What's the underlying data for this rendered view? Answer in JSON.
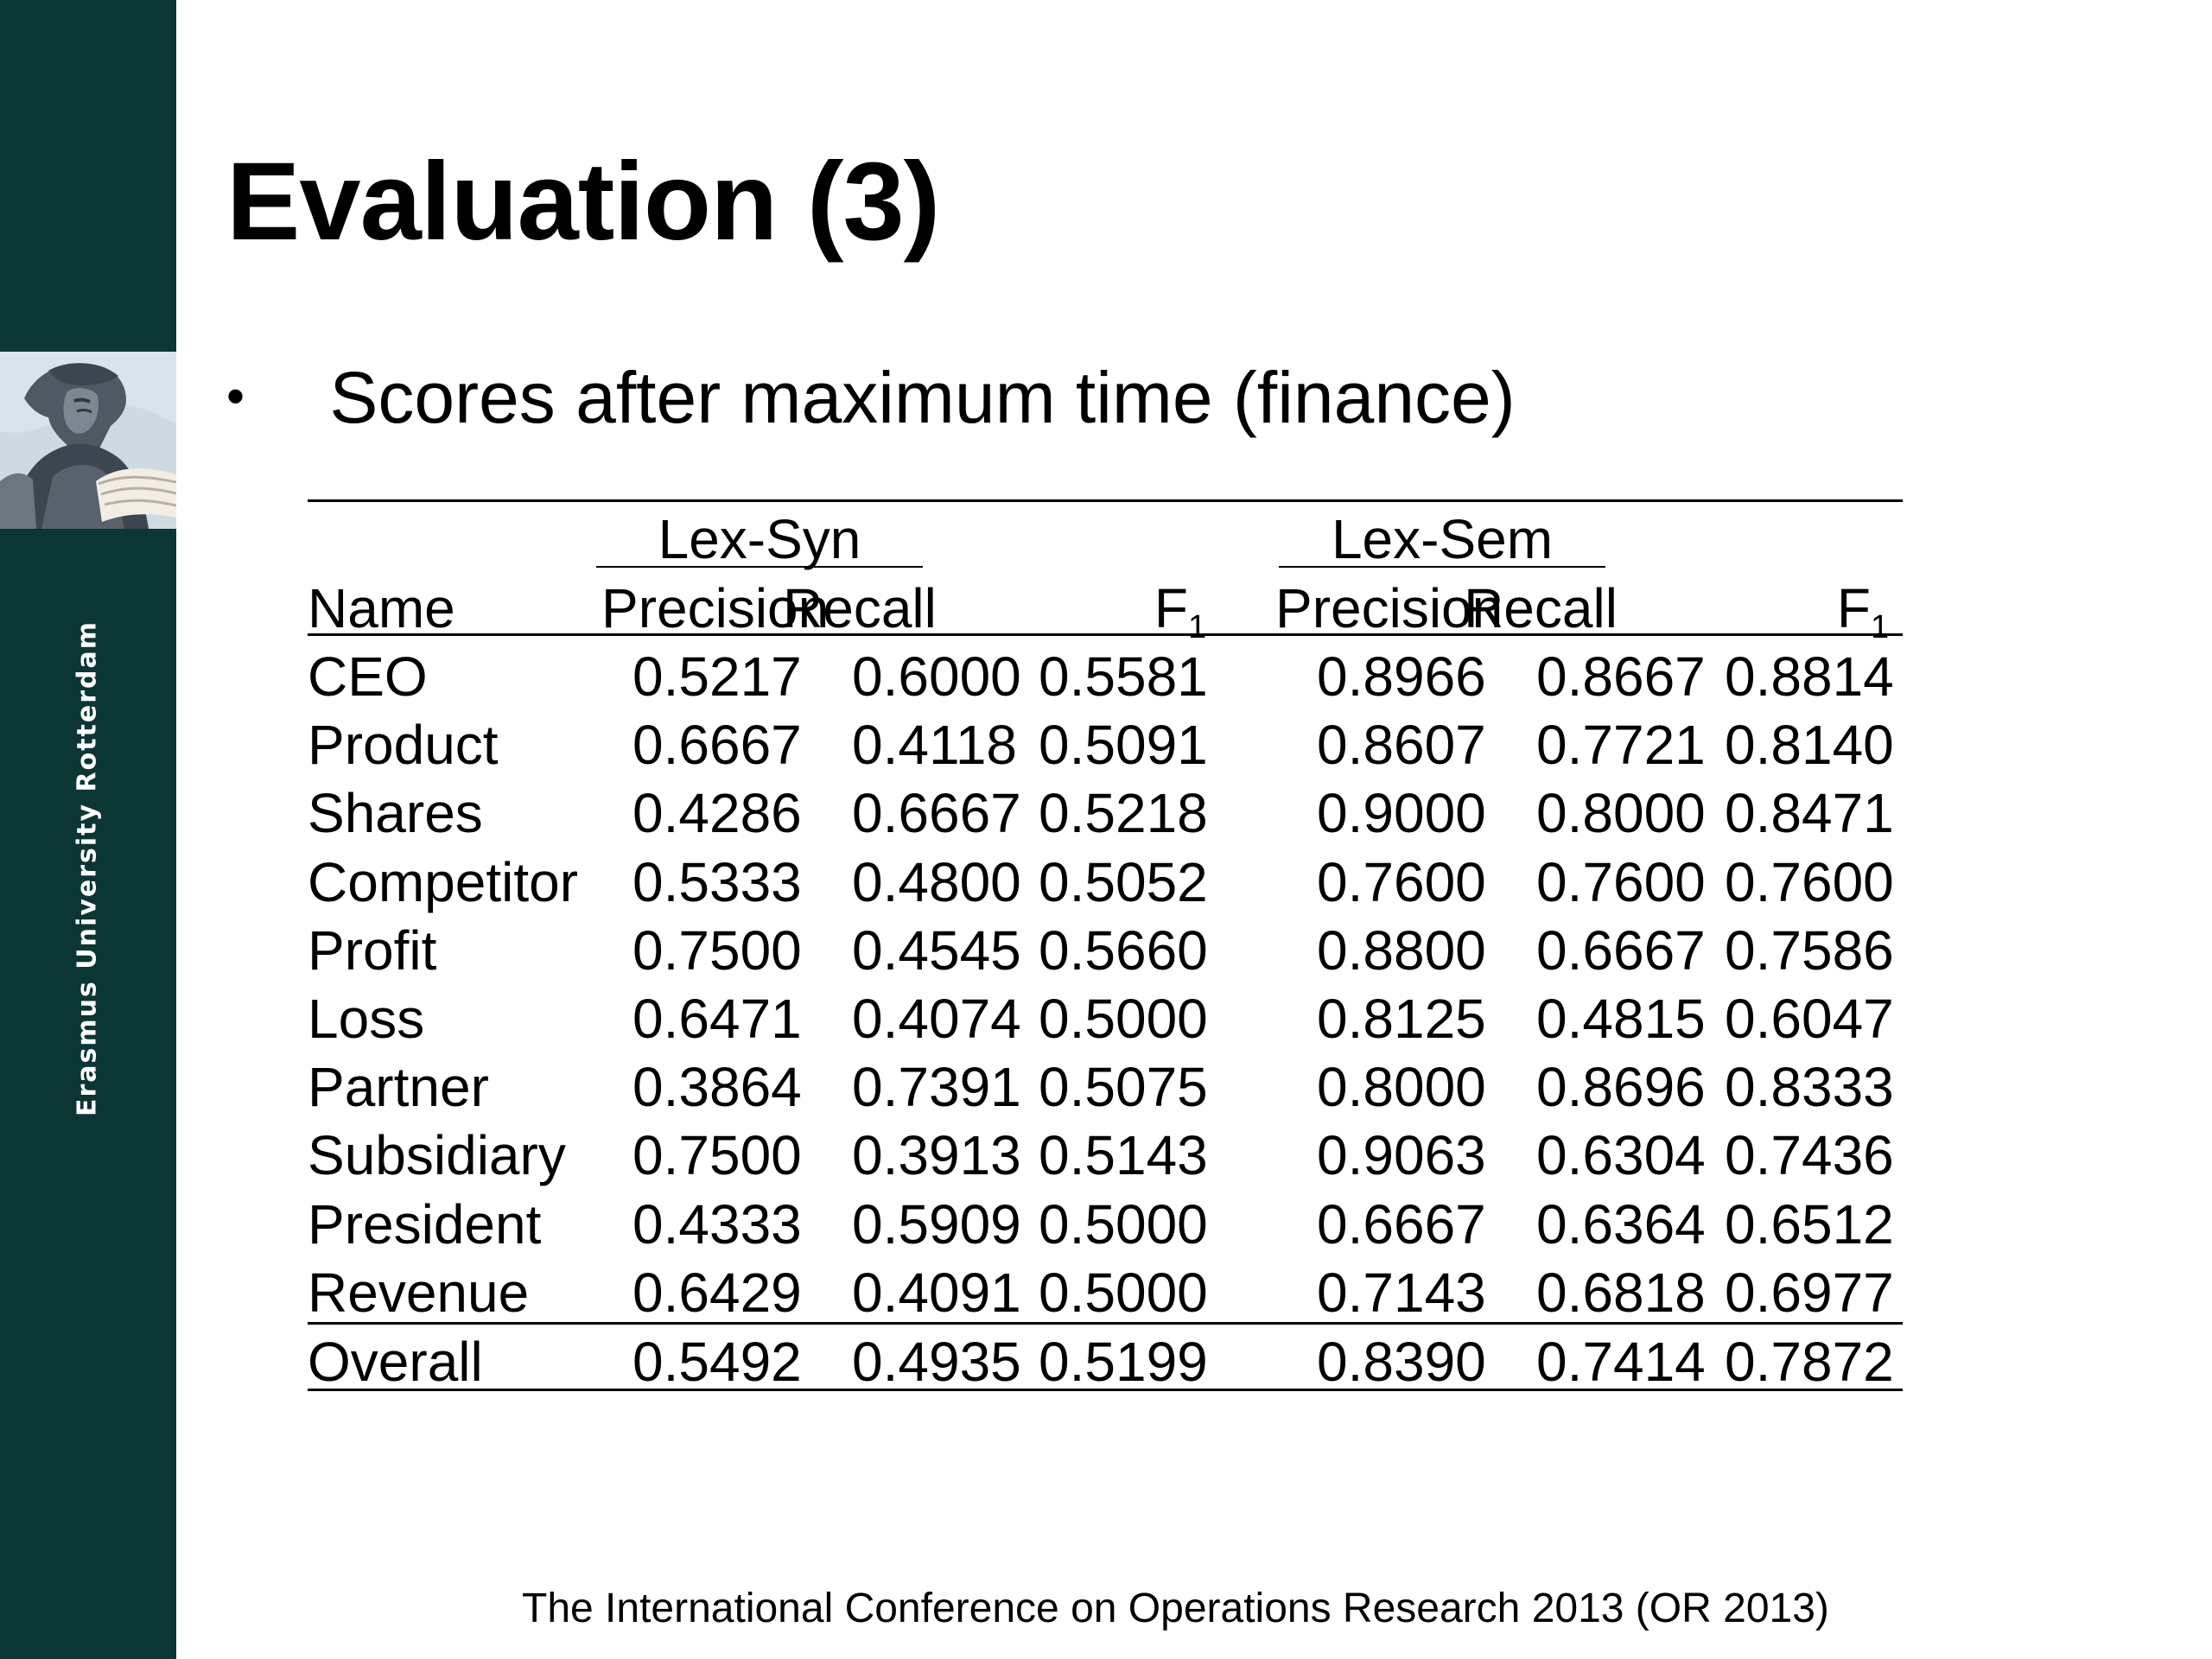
{
  "sidebar": {
    "institution": "Erasmus University Rotterdam"
  },
  "slide": {
    "title": "Evaluation (3)",
    "bullet": "Scores after maximum time (finance)",
    "footer": "The International Conference on Operations Research 2013 (OR 2013)"
  },
  "table": {
    "groups": [
      "Lex-Syn",
      "Lex-Sem"
    ],
    "name_header": "Name",
    "metric_headers": [
      "Precision",
      "Recall",
      "F",
      "1"
    ],
    "rows": [
      {
        "name": "CEO",
        "lex_syn": [
          "0.5217",
          "0.6000",
          "0.5581"
        ],
        "lex_sem": [
          "0.8966",
          "0.8667",
          "0.8814"
        ]
      },
      {
        "name": "Product",
        "lex_syn": [
          "0.6667",
          "0.4118",
          "0.5091"
        ],
        "lex_sem": [
          "0.8607",
          "0.7721",
          "0.8140"
        ]
      },
      {
        "name": "Shares",
        "lex_syn": [
          "0.4286",
          "0.6667",
          "0.5218"
        ],
        "lex_sem": [
          "0.9000",
          "0.8000",
          "0.8471"
        ]
      },
      {
        "name": "Competitor",
        "lex_syn": [
          "0.5333",
          "0.4800",
          "0.5052"
        ],
        "lex_sem": [
          "0.7600",
          "0.7600",
          "0.7600"
        ]
      },
      {
        "name": "Profit",
        "lex_syn": [
          "0.7500",
          "0.4545",
          "0.5660"
        ],
        "lex_sem": [
          "0.8800",
          "0.6667",
          "0.7586"
        ]
      },
      {
        "name": "Loss",
        "lex_syn": [
          "0.6471",
          "0.4074",
          "0.5000"
        ],
        "lex_sem": [
          "0.8125",
          "0.4815",
          "0.6047"
        ]
      },
      {
        "name": "Partner",
        "lex_syn": [
          "0.3864",
          "0.7391",
          "0.5075"
        ],
        "lex_sem": [
          "0.8000",
          "0.8696",
          "0.8333"
        ]
      },
      {
        "name": "Subsidiary",
        "lex_syn": [
          "0.7500",
          "0.3913",
          "0.5143"
        ],
        "lex_sem": [
          "0.9063",
          "0.6304",
          "0.7436"
        ]
      },
      {
        "name": "President",
        "lex_syn": [
          "0.4333",
          "0.5909",
          "0.5000"
        ],
        "lex_sem": [
          "0.6667",
          "0.6364",
          "0.6512"
        ]
      },
      {
        "name": "Revenue",
        "lex_syn": [
          "0.6429",
          "0.4091",
          "0.5000"
        ],
        "lex_sem": [
          "0.7143",
          "0.6818",
          "0.6977"
        ]
      }
    ],
    "overall": {
      "name": "Overall",
      "lex_syn": [
        "0.5492",
        "0.4935",
        "0.5199"
      ],
      "lex_sem": [
        "0.8390",
        "0.7414",
        "0.7872"
      ]
    }
  }
}
